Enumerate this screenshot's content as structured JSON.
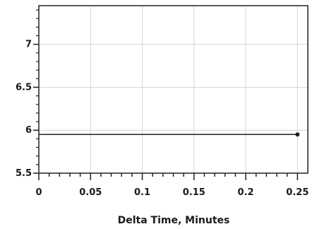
{
  "chart_data": {
    "type": "line",
    "title": "",
    "xlabel": "Delta Time, Minutes",
    "ylabel": "",
    "xlim": [
      0,
      0.26
    ],
    "ylim": [
      5.5,
      7.45
    ],
    "grid": true,
    "x_ticks": [
      {
        "value": 0,
        "label": "0"
      },
      {
        "value": 0.05,
        "label": "0.05"
      },
      {
        "value": 0.1,
        "label": "0.1"
      },
      {
        "value": 0.15,
        "label": "0.15"
      },
      {
        "value": 0.2,
        "label": "0.2"
      },
      {
        "value": 0.25,
        "label": "0.25"
      }
    ],
    "y_ticks": [
      {
        "value": 5.5,
        "label": "5.5"
      },
      {
        "value": 6,
        "label": "6"
      },
      {
        "value": 6.5,
        "label": "6.5"
      },
      {
        "value": 7,
        "label": "7"
      }
    ],
    "series": [
      {
        "x": [
          0,
          0.25
        ],
        "y": [
          5.95,
          5.95
        ],
        "color": "#222222",
        "markers": [
          false,
          true
        ]
      }
    ]
  }
}
